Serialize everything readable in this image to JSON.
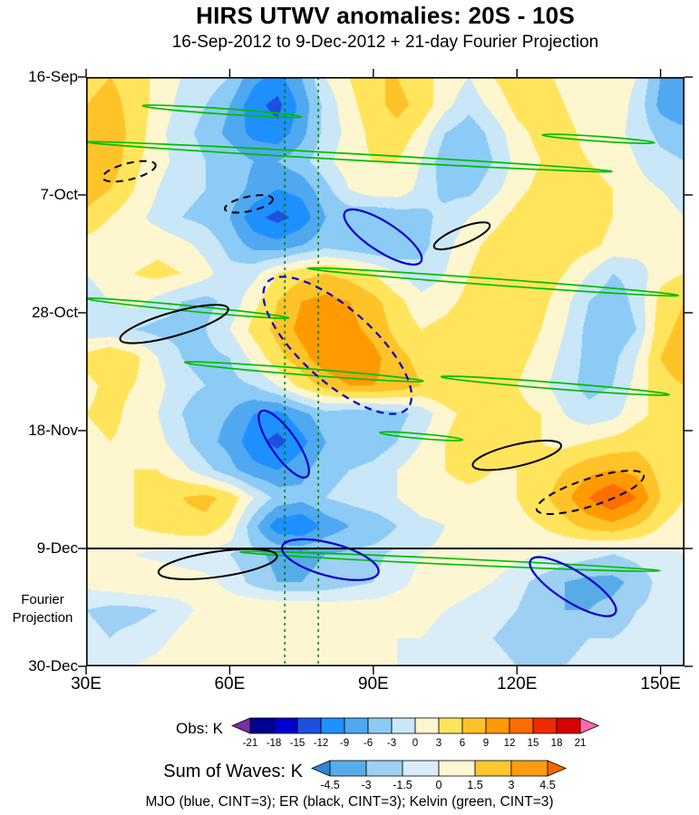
{
  "header": {
    "title": "HIRS UTWV anomalies: 20S - 10S",
    "subtitle": "16-Sep-2012 to 9-Dec-2012 + 21-day Fourier Projection"
  },
  "axes": {
    "y_ticks": [
      {
        "label": "16-Sep",
        "day": 0
      },
      {
        "label": "7-Oct",
        "day": 21
      },
      {
        "label": "28-Oct",
        "day": 42
      },
      {
        "label": "18-Nov",
        "day": 63
      },
      {
        "label": "9-Dec",
        "day": 84
      },
      {
        "label": "30-Dec",
        "day": 105
      }
    ],
    "x_ticks": [
      {
        "label": "30E",
        "lon": 30
      },
      {
        "label": "60E",
        "lon": 60
      },
      {
        "label": "90E",
        "lon": 90
      },
      {
        "label": "120E",
        "lon": 120
      },
      {
        "label": "150E",
        "lon": 150
      }
    ],
    "side_label_line1": "Fourier",
    "side_label_line2": "Projection"
  },
  "colorbars": {
    "obs": {
      "label": "Obs: K",
      "ticks": [
        -21,
        -18,
        -15,
        -12,
        -9,
        -6,
        -3,
        0,
        3,
        6,
        9,
        12,
        15,
        18,
        21
      ],
      "colors": [
        "#7A2EA8",
        "#000090",
        "#0000CD",
        "#1E50E0",
        "#1E90FF",
        "#50A8F0",
        "#8CCBF5",
        "#C9E7F7",
        "#FDF6CE",
        "#FFE45C",
        "#FFC32A",
        "#FF9A00",
        "#FD6D00",
        "#EF2A00",
        "#D80000",
        "#FF69B4"
      ]
    },
    "sum": {
      "label": "Sum of Waves: K",
      "ticks": [
        -4.5,
        -3,
        -1.5,
        0,
        1.5,
        3,
        4.5
      ],
      "colors": [
        "#2E86D6",
        "#57ACE8",
        "#9DD0F2",
        "#D9EDF9",
        "#FDF6D2",
        "#FFC62E",
        "#FF9C14",
        "#F26A00"
      ]
    }
  },
  "footer": {
    "caption": "MJO (blue, CINT=3); ER (black, CINT=3); Kelvin (green, CINT=3)"
  },
  "chart_data": {
    "type": "heatmap",
    "value_units": "K",
    "lon_min": 30,
    "lon_max": 155,
    "day_min": 0,
    "day_max": 105,
    "lon_start": 30,
    "lon_step": 5,
    "day_start": 0,
    "day_step": 5,
    "projection_start_day": 84,
    "field": [
      [
        5,
        6,
        5,
        2,
        0,
        -1,
        -3,
        -8,
        -10,
        -6,
        0,
        3,
        6,
        6,
        4,
        2,
        0,
        3,
        5,
        4,
        2,
        0,
        2,
        0,
        -6,
        -8
      ],
      [
        6,
        7,
        5,
        2,
        -1,
        -3,
        -6,
        -11,
        -13,
        -8,
        -2,
        2,
        5,
        7,
        5,
        1,
        -2,
        1,
        4,
        5,
        3,
        1,
        2,
        -1,
        -7,
        -9
      ],
      [
        7,
        8,
        5,
        1,
        -2,
        -4,
        -7,
        -10,
        -11,
        -7,
        -2,
        1,
        4,
        5,
        2,
        -3,
        -5,
        -2,
        2,
        4,
        4,
        2,
        1,
        -1,
        -4,
        -5
      ],
      [
        9,
        8,
        4,
        1,
        -1,
        -3,
        -4,
        -6,
        -6,
        -4,
        -1,
        2,
        3,
        3,
        0,
        -5,
        -6,
        -3,
        1,
        3,
        4,
        3,
        2,
        0,
        -2,
        -3
      ],
      [
        8,
        6,
        3,
        0,
        -2,
        -3,
        -4,
        -7,
        -9,
        -8,
        -4,
        0,
        2,
        2,
        -1,
        -4,
        -4,
        -1,
        2,
        4,
        5,
        4,
        3,
        1,
        0,
        -1
      ],
      [
        5,
        3,
        1,
        -1,
        -3,
        -4,
        -6,
        -11,
        -13,
        -11,
        -6,
        -5,
        -6,
        -5,
        -4,
        -2,
        0,
        2,
        4,
        6,
        6,
        5,
        3,
        2,
        1,
        0
      ],
      [
        2,
        1,
        1,
        2,
        1,
        -1,
        -4,
        -7,
        -8,
        -6,
        -4,
        -5,
        -6,
        -6,
        -4,
        -1,
        2,
        4,
        5,
        6,
        5,
        4,
        2,
        2,
        1,
        1
      ],
      [
        0,
        1,
        3,
        4,
        3,
        1,
        -2,
        -1,
        3,
        5,
        6,
        5,
        3,
        0,
        -2,
        0,
        3,
        5,
        6,
        5,
        3,
        0,
        -3,
        -2,
        2,
        3
      ],
      [
        -1,
        0,
        1,
        -1,
        -3,
        -4,
        -2,
        2,
        6,
        9,
        10,
        9,
        7,
        4,
        1,
        2,
        4,
        6,
        6,
        4,
        1,
        -3,
        -5,
        -2,
        4,
        6
      ],
      [
        -2,
        -2,
        -3,
        -4,
        -4,
        -3,
        0,
        4,
        7,
        10,
        11,
        10,
        8,
        5,
        3,
        4,
        5,
        6,
        5,
        3,
        0,
        -4,
        -6,
        -3,
        5,
        7
      ],
      [
        4,
        6,
        4,
        0,
        -3,
        -4,
        -3,
        1,
        5,
        8,
        11,
        12,
        10,
        7,
        5,
        5,
        6,
        6,
        4,
        2,
        -1,
        -4,
        -4,
        0,
        6,
        8
      ],
      [
        2,
        4,
        3,
        1,
        -2,
        -3,
        -4,
        -3,
        0,
        4,
        7,
        9,
        9,
        8,
        6,
        6,
        6,
        5,
        3,
        1,
        -2,
        -4,
        -3,
        1,
        5,
        6
      ],
      [
        3,
        4,
        2,
        0,
        -3,
        -5,
        -6,
        -9,
        -10,
        -7,
        -4,
        -5,
        -5,
        -4,
        -2,
        2,
        4,
        5,
        4,
        3,
        0,
        -2,
        -1,
        2,
        4,
        5
      ],
      [
        2,
        3,
        2,
        1,
        -2,
        -5,
        -7,
        -11,
        -13,
        -10,
        -6,
        -6,
        -5,
        -3,
        0,
        3,
        5,
        5,
        4,
        3,
        2,
        3,
        4,
        5,
        4,
        3
      ],
      [
        1,
        2,
        3,
        3,
        1,
        -2,
        -5,
        -8,
        -9,
        -7,
        -4,
        -3,
        -2,
        0,
        2,
        3,
        4,
        3,
        3,
        4,
        6,
        8,
        9,
        8,
        5,
        3
      ],
      [
        0,
        1,
        3,
        5,
        6,
        7,
        5,
        0,
        -4,
        -5,
        -3,
        -2,
        -1,
        0,
        2,
        2,
        2,
        2,
        3,
        5,
        8,
        12,
        15,
        12,
        6,
        3
      ],
      [
        1,
        2,
        3,
        4,
        5,
        5,
        2,
        -5,
        -11,
        -12,
        -8,
        -6,
        -5,
        -3,
        -1,
        0,
        1,
        1,
        2,
        3,
        5,
        7,
        8,
        6,
        3,
        1
      ],
      [
        0.5,
        0.5,
        0,
        -0.5,
        -1,
        -1,
        -1.5,
        -2.5,
        -3.5,
        -3.5,
        -3,
        -2.5,
        -2,
        -1,
        0,
        0.5,
        1,
        1,
        0.5,
        0,
        -0.5,
        -1,
        -1.5,
        -1,
        -0.5,
        0
      ],
      [
        0.5,
        1,
        1.5,
        1.5,
        1,
        0.5,
        -0.5,
        -2,
        -3,
        -3,
        -2.5,
        -2,
        -1.5,
        -0.5,
        0.5,
        1,
        0.5,
        0,
        -1,
        -2,
        -3,
        -3.5,
        -3.5,
        -2.5,
        -1,
        -0.5
      ],
      [
        -1.5,
        -2,
        -2,
        -1.5,
        -0.5,
        0.5,
        1,
        1.5,
        1.5,
        1.5,
        1,
        1,
        1,
        1,
        0.5,
        0,
        -0.5,
        -1,
        -1.5,
        -2.5,
        -3,
        -3,
        -2.5,
        -1.5,
        -1,
        -0.5
      ],
      [
        -1,
        -1.5,
        -1,
        -0.5,
        0.5,
        1,
        1.5,
        1.5,
        1,
        1,
        1,
        0.5,
        0.5,
        0,
        0,
        -0.5,
        -1,
        -1.5,
        -2,
        -2,
        -2,
        -1.5,
        -1.5,
        -1,
        -1,
        -0.5
      ],
      [
        -0.5,
        -0.5,
        0,
        0.5,
        1,
        1,
        1,
        1,
        0.5,
        0.5,
        0.5,
        0.5,
        0,
        0,
        -0.5,
        -0.5,
        -1,
        -1,
        -1.5,
        -1.5,
        -1.5,
        -1,
        -1,
        -0.5,
        -0.5,
        0
      ]
    ],
    "annotations": {
      "colors": {
        "mjo": "#0000CD",
        "er": "#000000",
        "kelvin": "#00BE00",
        "vline": "#006E00"
      },
      "vlines_lon": [
        71.5,
        78.5
      ],
      "mjo": [
        {
          "lon": 92,
          "day": 28.5,
          "rx": 50,
          "ry": 16,
          "angle": 33,
          "dashed": false
        },
        {
          "lon": 82.5,
          "day": 47.8,
          "rx": 104,
          "ry": 40,
          "angle": 42,
          "dashed": true
        },
        {
          "lon": 71.3,
          "day": 65.4,
          "rx": 44,
          "ry": 14,
          "angle": 55,
          "dashed": false
        },
        {
          "lon": 81,
          "day": 86,
          "rx": 55,
          "ry": 18,
          "angle": 15,
          "dashed": false
        },
        {
          "lon": 131.7,
          "day": 90.8,
          "rx": 55,
          "ry": 17,
          "angle": 32,
          "dashed": false
        }
      ],
      "er": [
        {
          "lon": 39,
          "day": 16.8,
          "rx": 30,
          "ry": 9,
          "angle": -14,
          "dashed": true
        },
        {
          "lon": 64,
          "day": 22.6,
          "rx": 27,
          "ry": 8,
          "angle": -12,
          "dashed": true
        },
        {
          "lon": 108.5,
          "day": 28.3,
          "rx": 33,
          "ry": 9,
          "angle": -22,
          "dashed": false
        },
        {
          "lon": 48.4,
          "day": 44,
          "rx": 62,
          "ry": 13,
          "angle": -16,
          "dashed": false
        },
        {
          "lon": 120,
          "day": 67.4,
          "rx": 50,
          "ry": 12,
          "angle": -13,
          "dashed": false
        },
        {
          "lon": 135.3,
          "day": 74,
          "rx": 62,
          "ry": 15,
          "angle": -18,
          "dashed": true
        },
        {
          "lon": 57.5,
          "day": 86.8,
          "rx": 66,
          "ry": 14,
          "angle": -8,
          "dashed": false
        }
      ],
      "kelvin": [
        {
          "lon": 58.4,
          "day": 6.1,
          "rx": 88,
          "ry": 3,
          "angle": 4
        },
        {
          "lon": 137,
          "day": 11,
          "rx": 62,
          "ry": 2.6,
          "angle": 4
        },
        {
          "lon": 85,
          "day": 14.2,
          "rx": 290,
          "ry": 3.5,
          "angle": 3.2
        },
        {
          "lon": 115,
          "day": 36.5,
          "rx": 205,
          "ry": 3.5,
          "angle": 4.2
        },
        {
          "lon": 51.2,
          "day": 41.2,
          "rx": 112,
          "ry": 3,
          "angle": 5.5
        },
        {
          "lon": 75.5,
          "day": 52.5,
          "rx": 132,
          "ry": 3.5,
          "angle": 4.5
        },
        {
          "lon": 128,
          "day": 55,
          "rx": 126,
          "ry": 3.5,
          "angle": 4.5
        },
        {
          "lon": 100,
          "day": 64,
          "rx": 46,
          "ry": 2.6,
          "angle": 5
        },
        {
          "lon": 106,
          "day": 86.3,
          "rx": 232,
          "ry": 3.2,
          "angle": 2.6
        }
      ]
    }
  }
}
